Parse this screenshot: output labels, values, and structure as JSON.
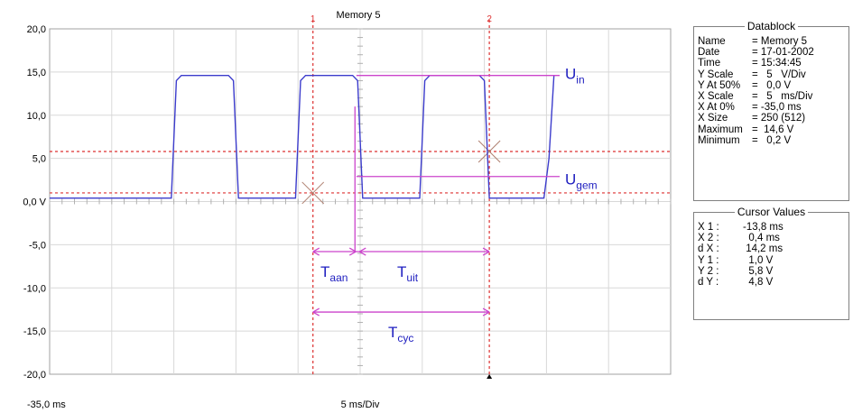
{
  "chart_data": {
    "type": "line",
    "title": "Memory 5",
    "xlabel_left": "-35,0 ms",
    "xlabel_center": "5 ms/Div",
    "xlim": [
      -35,
      15
    ],
    "ylim": [
      -20,
      20
    ],
    "grid": true,
    "yticks": [
      "20,0",
      "15,0",
      "10,0",
      "5,0",
      "0,0 V",
      "-5,0",
      "-10,0",
      "-15,0",
      "-20,0"
    ],
    "yticks_values": [
      20,
      15,
      10,
      5,
      0,
      -5,
      -10,
      -15,
      -20
    ],
    "series": [
      {
        "color": "#3c3ccc",
        "x": [
          -35,
          -25.2,
          -24.8,
          -24.4,
          -20.6,
          -20.2,
          -19.8,
          -15.2,
          -14.8,
          -14.4,
          -10.6,
          -10.2,
          -9.8,
          -5.2,
          -4.8,
          -4.4,
          -0.4,
          0,
          0.4,
          4.8,
          5.2,
          5.6
        ],
        "y": [
          0.4,
          0.4,
          14.0,
          14.6,
          14.6,
          14.0,
          0.4,
          0.4,
          14.0,
          14.6,
          14.6,
          14.0,
          0.4,
          0.4,
          14.0,
          14.6,
          14.6,
          14.0,
          0.4,
          0.4,
          5.0,
          14.6
        ]
      }
    ],
    "cursors": {
      "vertical": [
        {
          "label": "1",
          "x": -13.8
        },
        {
          "label": "2",
          "x": 0.4
        }
      ],
      "horizontal": [
        1.0,
        5.8
      ],
      "color": "#dd3030"
    },
    "annotations": {
      "color": "#cc44cc",
      "text_color": "#2020c0",
      "u_in": {
        "base": "U",
        "sub": "in",
        "y": 14.6
      },
      "u_gem": {
        "base": "U",
        "sub": "gem",
        "y": 2.9
      },
      "t_aan": {
        "base": "T",
        "sub": "aan",
        "y": -5.8,
        "x_from": -13.8,
        "x_to": -10.2
      },
      "t_uit": {
        "base": "T",
        "sub": "uit",
        "y": -5.8,
        "x_from": -10.2,
        "x_to": 0.4
      },
      "t_cyc": {
        "base": "T",
        "sub": "cyc",
        "y": -12.8,
        "x_from": -13.8,
        "x_to": 0.4
      }
    }
  },
  "datablock": {
    "title": "Datablock",
    "rows": [
      {
        "key": "Name",
        "value": "= Memory 5"
      },
      {
        "key": "Date",
        "value": "= 17-01-2002"
      },
      {
        "key": "Time",
        "value": "= 15:34:45"
      },
      {
        "key": "Y Scale",
        "value": "=   5   V/Div"
      },
      {
        "key": "Y At 50%",
        "value": "=   0,0 V"
      },
      {
        "key": "X Scale",
        "value": "=   5   ms/Div"
      },
      {
        "key": "X At 0%",
        "value": "= -35,0 ms"
      },
      {
        "key": "X Size",
        "value": "= 250 (512)"
      },
      {
        "key": "Maximum",
        "value": "=  14,6 V"
      },
      {
        "key": "Minimum",
        "value": "=   0,2 V"
      }
    ]
  },
  "cursor_values": {
    "title": "Cursor Values",
    "rows": [
      {
        "key": "X 1 :",
        "value": "-13,8 ms"
      },
      {
        "key": "X 2 :",
        "value": "  0,4 ms"
      },
      {
        "key": "d X :",
        "value": " 14,2 ms"
      },
      {
        "key": "Y 1 :",
        "value": "  1,0 V"
      },
      {
        "key": "Y 2 :",
        "value": "  5,8 V"
      },
      {
        "key": "d Y :",
        "value": "  4,8 V"
      }
    ]
  }
}
